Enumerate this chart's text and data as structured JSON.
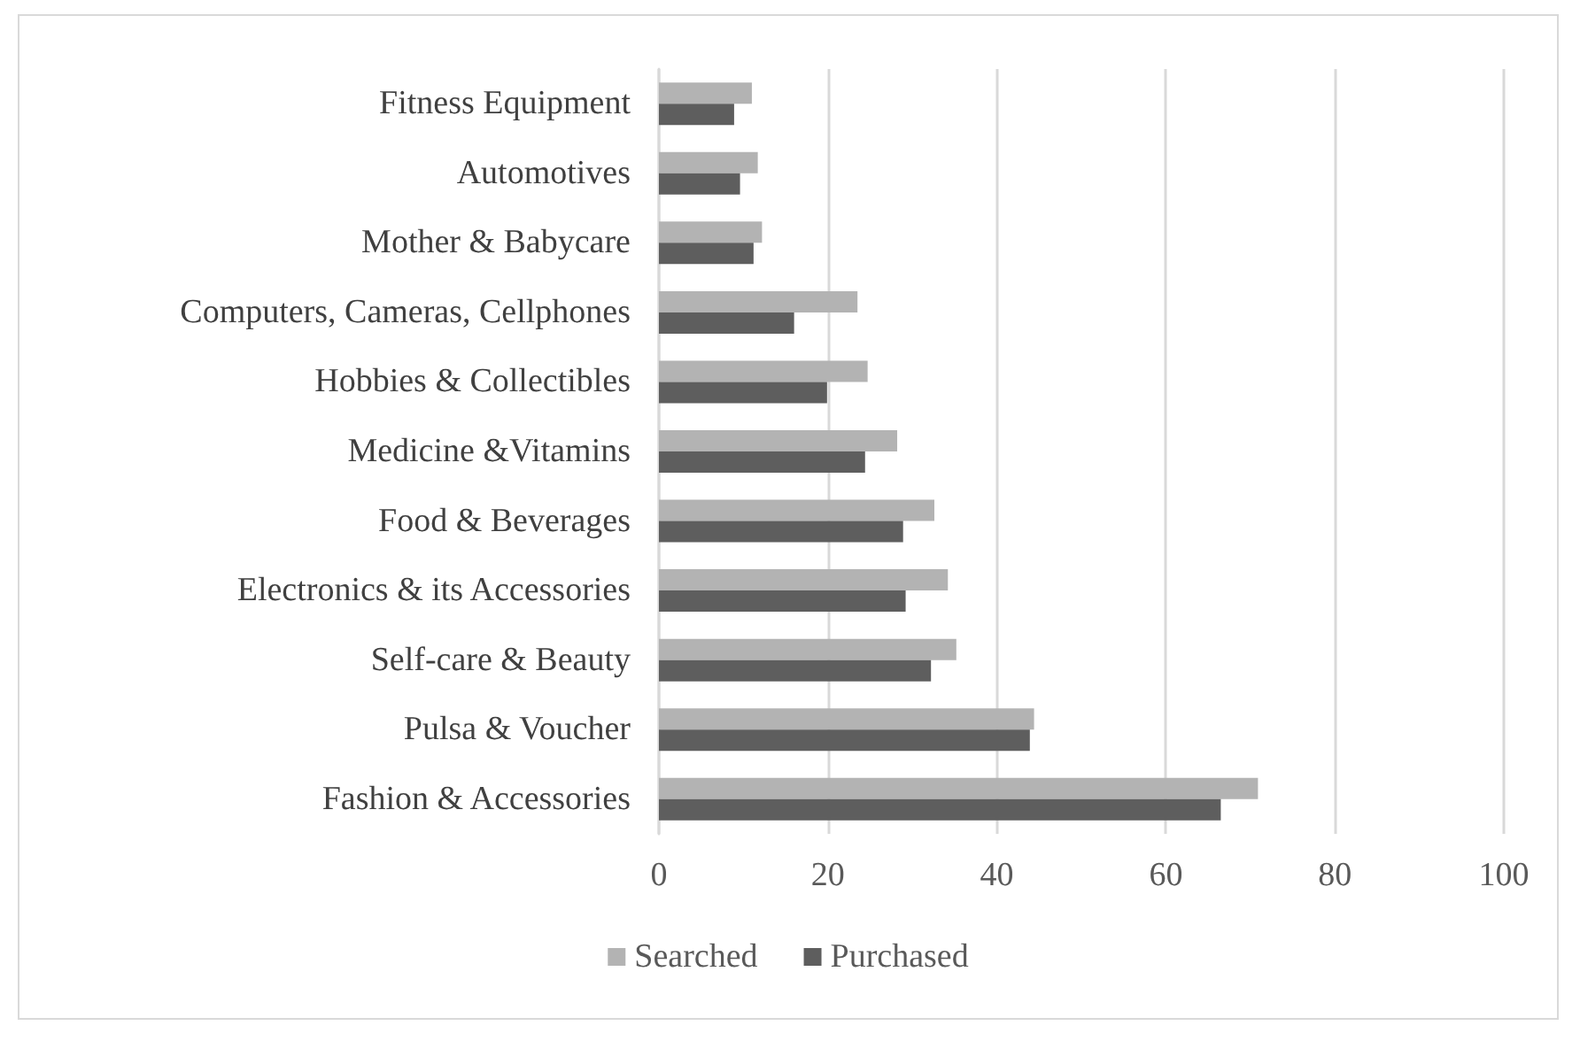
{
  "chart_data": {
    "type": "bar",
    "orientation": "horizontal",
    "categories": [
      "Fitness Equipment",
      "Automotives",
      "Mother & Babycare",
      "Computers, Cameras, Cellphones",
      "Hobbies & Collectibles",
      "Medicine &Vitamins",
      "Food & Beverages",
      "Electronics & its Accessories",
      "Self-care & Beauty",
      "Pulsa & Voucher",
      "Fashion & Accessories"
    ],
    "series": [
      {
        "name": "Searched",
        "color": "#b3b3b3",
        "values": [
          11.0,
          11.7,
          12.2,
          23.5,
          24.7,
          28.2,
          32.6,
          34.2,
          35.2,
          44.4,
          70.9
        ]
      },
      {
        "name": "Purchased",
        "color": "#5e5e5e",
        "values": [
          8.9,
          9.6,
          11.2,
          16.0,
          19.9,
          24.4,
          28.9,
          29.2,
          32.2,
          43.9,
          66.5
        ]
      }
    ],
    "xlim": [
      0,
      100
    ],
    "xticks": [
      0,
      20,
      40,
      60,
      80,
      100
    ],
    "grid": "x",
    "legend": "bottom"
  }
}
